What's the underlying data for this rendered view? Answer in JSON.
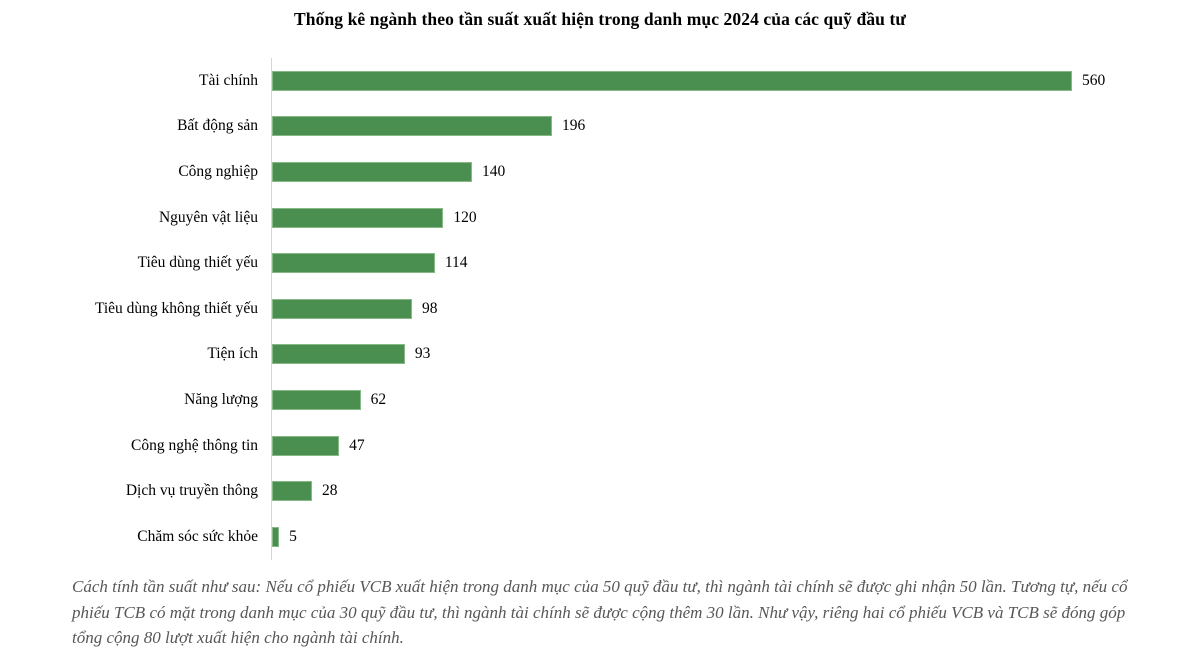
{
  "chart_data": {
    "type": "bar",
    "orientation": "horizontal",
    "title": "Thống kê ngành theo tần suất xuất hiện trong danh mục 2024 của các quỹ đầu tư",
    "categories": [
      "Tài chính",
      "Bất động sản",
      "Công nghiệp",
      "Nguyên vật liệu",
      "Tiêu dùng thiết yếu",
      "Tiêu dùng không thiết yếu",
      "Tiện ích",
      "Năng lượng",
      "Công nghệ thông tin",
      "Dịch vụ truyền thông",
      "Chăm sóc sức khỏe"
    ],
    "values": [
      560,
      196,
      140,
      120,
      114,
      98,
      93,
      62,
      47,
      28,
      5
    ],
    "xlabel": "",
    "ylabel": "",
    "xlim": [
      0,
      560
    ],
    "grid": "off",
    "legend": "none",
    "value_labels_shown": true,
    "bar_color": "#4a8f50",
    "bar_edge_color": "#86b888",
    "axis_line_color": "#d6d6d6"
  },
  "footnote": {
    "text": "Cách tính tần suất như sau: Nếu cổ phiếu VCB xuất hiện trong danh mục của 50 quỹ đầu tư, thì ngành tài chính sẽ được ghi nhận 50 lần. Tương tự, nếu cổ phiếu TCB có mặt trong danh mục của 30 quỹ đầu tư, thì ngành tài chính sẽ được cộng thêm 30 lần. Như vậy, riêng hai cổ phiếu VCB và TCB sẽ đóng góp tổng cộng 80 lượt xuất hiện cho ngành tài chính.",
    "color": "#575757"
  }
}
